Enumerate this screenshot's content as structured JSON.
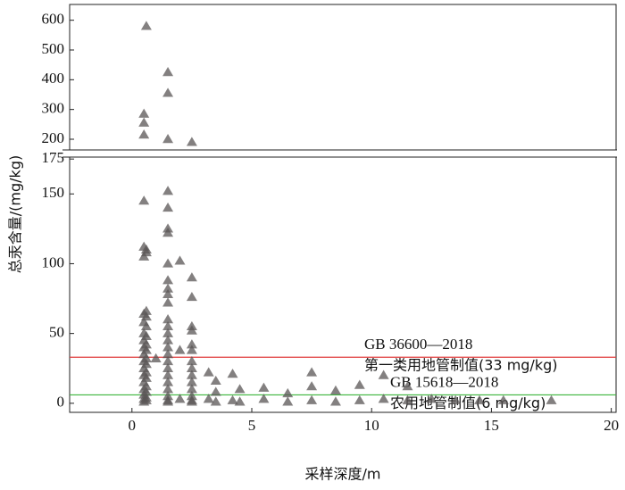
{
  "chart_data": [
    {
      "type": "scatter",
      "ylabel": "总汞含量/(mg/kg)",
      "color": "#5a5555",
      "xlim": [
        -2.6,
        20.2
      ],
      "ylim": [
        164,
        653
      ],
      "yticks": [
        200,
        300,
        400,
        500,
        600
      ],
      "x": [
        0.6,
        0.5,
        0.5,
        0.5,
        1.5,
        1.5,
        1.5,
        2.5
      ],
      "values": [
        580,
        285,
        255,
        215,
        425,
        355,
        200,
        190
      ]
    },
    {
      "type": "scatter",
      "xlabel": "采样深度/m",
      "color": "#5a5555",
      "xlim": [
        -2.6,
        20.2
      ],
      "ylim": [
        -6.5,
        181.5
      ],
      "yticks": [
        0,
        50,
        100,
        150,
        175
      ],
      "xticks": [
        0,
        5,
        10,
        15,
        20
      ],
      "hlines": [
        {
          "value": 33,
          "color": "#e03c3c",
          "label": [
            "GB 36600—2018",
            "第一类用地管制值(33 mg/kg)"
          ]
        },
        {
          "value": 6,
          "color": "#3cb43c",
          "label": [
            "GB 15618—2018",
            "农用地管制值(6 mg/kg)"
          ]
        }
      ],
      "x": [
        0.5,
        0.5,
        0.5,
        0.5,
        0.5,
        0.5,
        0.5,
        0.5,
        0.5,
        0.5,
        0.5,
        0.5,
        0.5,
        0.5,
        0.5,
        0.5,
        0.5,
        0.6,
        0.6,
        0.6,
        0.6,
        0.6,
        0.6,
        0.6,
        0.6,
        0.6,
        0.6,
        0.6,
        0.6,
        0.6,
        0.6,
        0.6,
        0.6,
        1.0,
        1.5,
        1.5,
        1.5,
        1.5,
        1.5,
        1.5,
        1.5,
        1.5,
        1.5,
        1.5,
        1.5,
        1.5,
        1.5,
        1.5,
        1.5,
        1.5,
        1.5,
        1.5,
        1.5,
        1.5,
        1.5,
        1.5,
        1.5,
        2.0,
        2.0,
        2.0,
        2.5,
        2.5,
        2.5,
        2.5,
        2.5,
        2.5,
        2.5,
        2.5,
        2.5,
        2.5,
        2.5,
        2.5,
        2.5,
        2.5,
        3.2,
        3.2,
        3.5,
        3.5,
        3.5,
        4.2,
        4.2,
        4.5,
        4.5,
        5.5,
        5.5,
        6.5,
        6.5,
        7.5,
        7.5,
        7.5,
        8.5,
        8.5,
        9.5,
        9.5,
        10.5,
        10.5,
        11.5,
        11.5,
        12.5,
        13.5,
        14.5,
        15.5,
        17.5
      ],
      "values": [
        145,
        112,
        105,
        64,
        58,
        50,
        45,
        40,
        35,
        30,
        25,
        20,
        15,
        10,
        6,
        3,
        1,
        110,
        108,
        66,
        62,
        55,
        48,
        42,
        38,
        32,
        28,
        22,
        18,
        12,
        8,
        4,
        2,
        32,
        152,
        140,
        125,
        122,
        100,
        88,
        82,
        78,
        72,
        60,
        55,
        50,
        45,
        40,
        35,
        30,
        25,
        20,
        15,
        10,
        5,
        2,
        1,
        102,
        38,
        3,
        90,
        76,
        55,
        52,
        42,
        38,
        30,
        25,
        20,
        15,
        10,
        5,
        2,
        1,
        22,
        3,
        16,
        8,
        1,
        21,
        2,
        10,
        1,
        11,
        3,
        7,
        1,
        22,
        12,
        2,
        9,
        1,
        13,
        2,
        20,
        3,
        12,
        2,
        3,
        2,
        2,
        2,
        2
      ]
    }
  ]
}
